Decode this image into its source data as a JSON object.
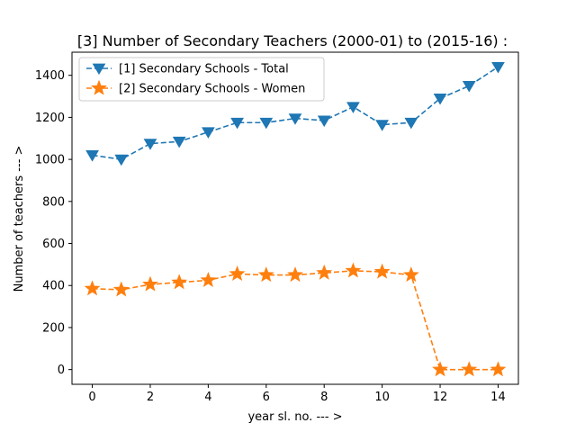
{
  "chart_data": {
    "type": "line",
    "title": "[3] Number of Secondary Teachers (2000-01) to (2015-16) :",
    "xlabel": "year sl. no. --- >",
    "ylabel": "Number of teachers --- >",
    "xlim": [
      -0.7,
      14.7
    ],
    "ylim": [
      -70,
      1510
    ],
    "xticks": [
      0,
      2,
      4,
      6,
      8,
      10,
      12,
      14
    ],
    "yticks": [
      0,
      200,
      400,
      600,
      800,
      1000,
      1200,
      1400
    ],
    "grid": false,
    "legend_position": "upper-left",
    "x": [
      0,
      1,
      2,
      3,
      4,
      5,
      6,
      7,
      8,
      9,
      10,
      11,
      12,
      13,
      14
    ],
    "series": [
      {
        "name": "[1] Secondary Schools - Total",
        "color": "#1f77b4",
        "marker": "triangle-down",
        "linestyle": "dashed",
        "values": [
          1020,
          1000,
          1075,
          1085,
          1130,
          1175,
          1175,
          1195,
          1185,
          1250,
          1165,
          1175,
          1290,
          1350,
          1440
        ]
      },
      {
        "name": "[2] Secondary Schools - Women",
        "color": "#ff7f0e",
        "marker": "star",
        "linestyle": "dashed",
        "values": [
          385,
          380,
          405,
          415,
          425,
          455,
          450,
          450,
          460,
          470,
          465,
          450,
          0,
          0,
          0
        ]
      }
    ]
  }
}
